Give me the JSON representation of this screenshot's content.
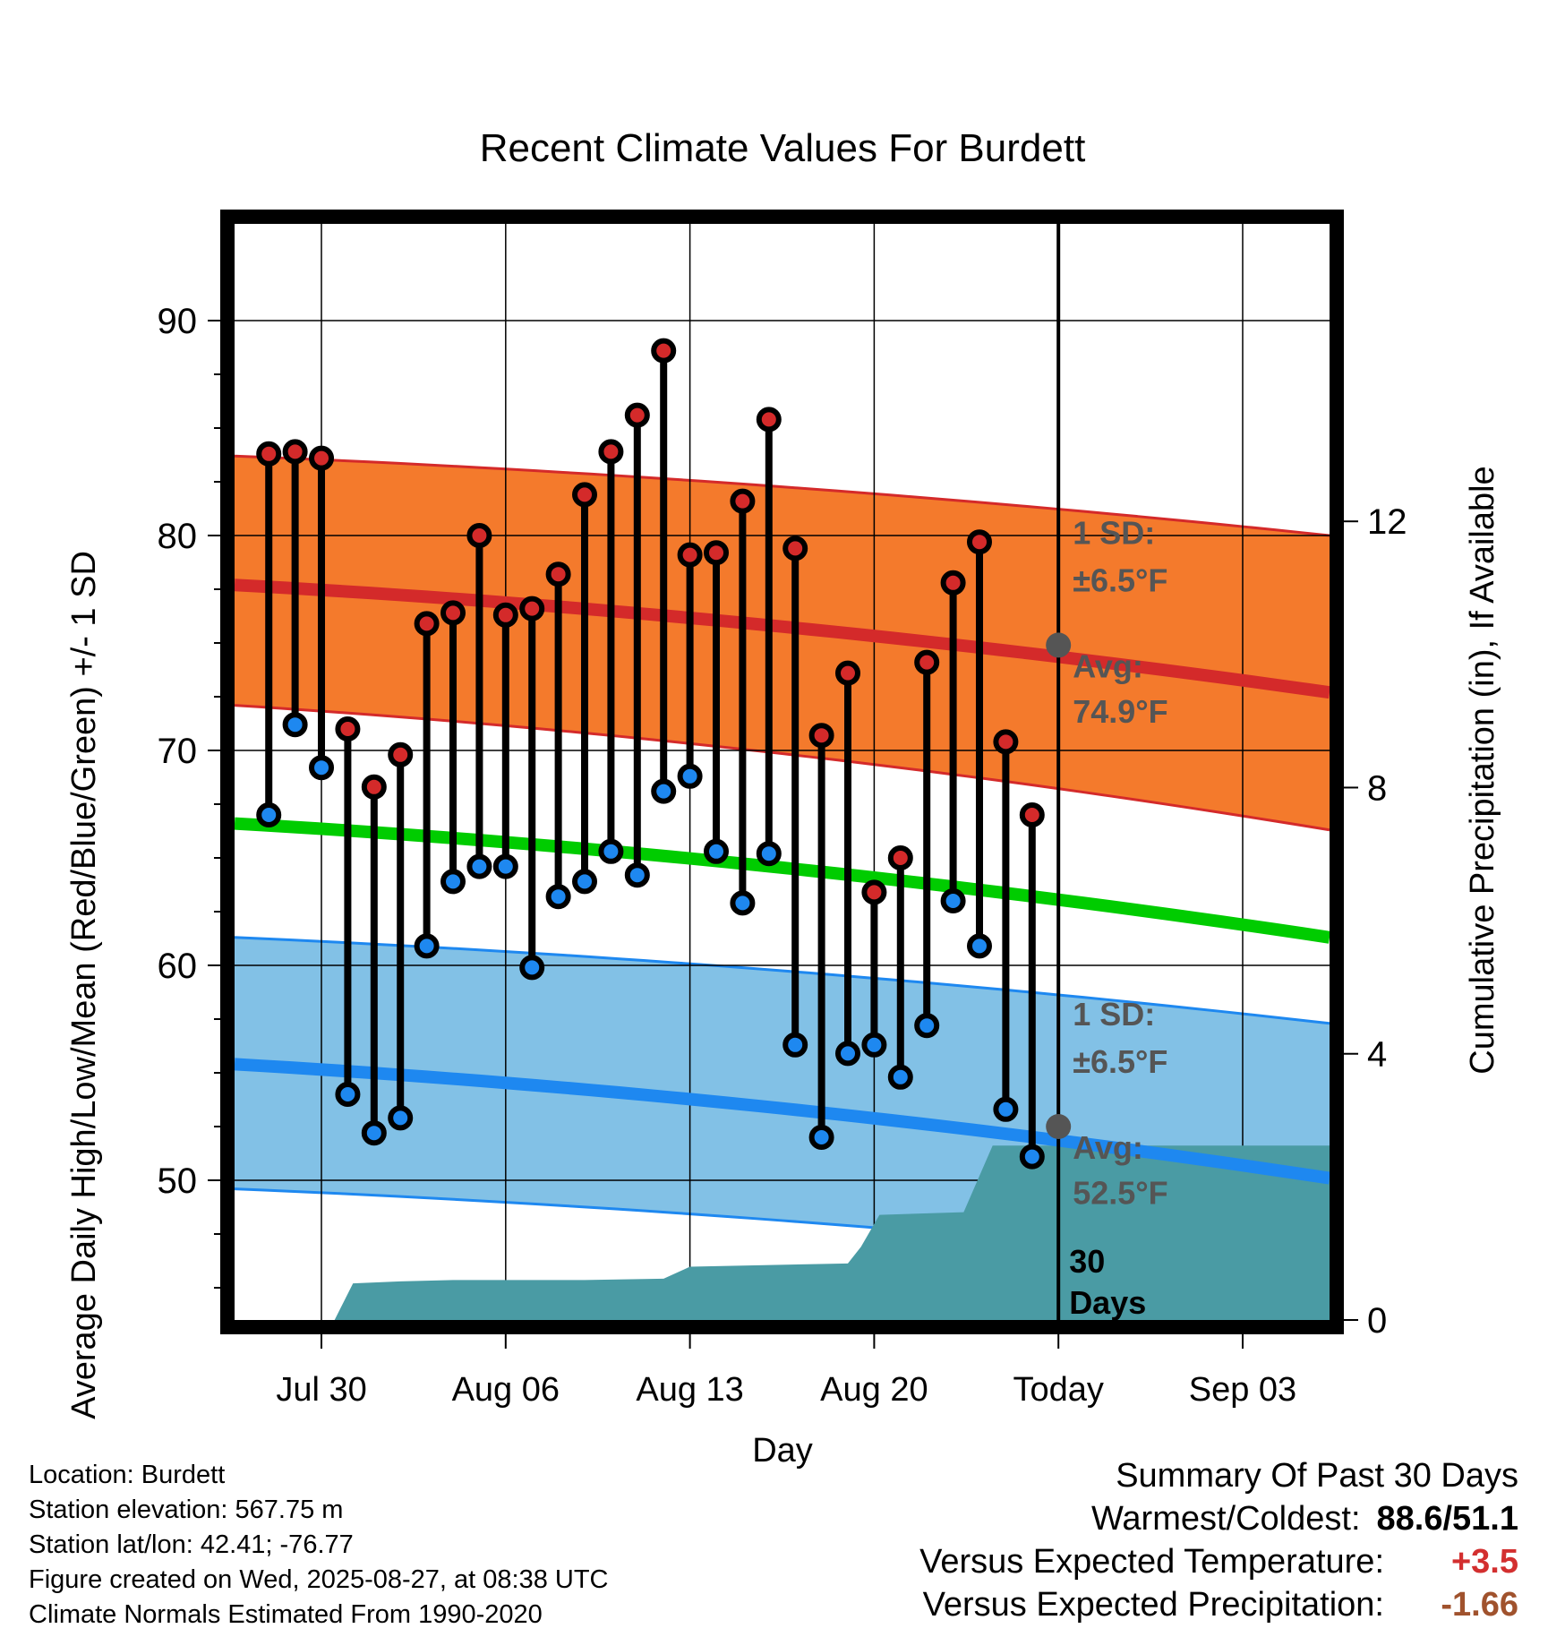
{
  "chart_data": {
    "type": "line",
    "title": "Recent Climate Values For Burdett",
    "xlabel": "Day",
    "ylabel": "Average Daily High/Low/Mean (Red/Blue/Green) +/- 1 SD",
    "y2label": "Cumulative Precipitation (in), If Available",
    "ylim": [
      43.5,
      94.5
    ],
    "y2lim": [
      0,
      16.47
    ],
    "xlim": [
      -3.3,
      38.3
    ],
    "yticks": [
      "50",
      "60",
      "70",
      "80",
      "90"
    ],
    "y2ticks": [
      "0",
      "4",
      "8",
      "12"
    ],
    "x_tick_labels": [
      {
        "day": 0,
        "label": "Jul 30"
      },
      {
        "day": 7,
        "label": "Aug 06"
      },
      {
        "day": 14,
        "label": "Aug 13"
      },
      {
        "day": 21,
        "label": "Aug 20"
      },
      {
        "day": 28,
        "label": "Today"
      },
      {
        "day": 35,
        "label": "Sep 03"
      }
    ],
    "grid": true,
    "today_day": 28,
    "daily": {
      "days": [
        -2,
        -1,
        0,
        1,
        2,
        3,
        4,
        5,
        6,
        7,
        8,
        9,
        10,
        11,
        12,
        13,
        14,
        15,
        16,
        17,
        18,
        19,
        20,
        21,
        22,
        23,
        24,
        25,
        26,
        27
      ],
      "high": [
        83.8,
        83.9,
        83.6,
        71.0,
        68.3,
        69.8,
        75.9,
        76.4,
        80.0,
        76.3,
        76.6,
        78.2,
        81.9,
        83.9,
        85.6,
        88.6,
        79.1,
        79.2,
        81.6,
        85.4,
        79.4,
        70.7,
        73.6,
        63.4,
        65.0,
        74.1,
        77.8,
        79.7,
        70.4,
        67.0
      ],
      "low": [
        67.0,
        71.2,
        69.2,
        54.0,
        52.2,
        52.9,
        60.9,
        63.9,
        64.6,
        64.6,
        59.9,
        63.2,
        63.9,
        65.3,
        64.2,
        68.1,
        68.8,
        65.3,
        62.9,
        65.2,
        56.3,
        52.0,
        55.9,
        56.3,
        54.8,
        57.2,
        63.0,
        60.9,
        53.3,
        51.1
      ]
    },
    "series": [
      {
        "name": "High",
        "color": "#d42a2a",
        "x": [
          -3.3,
          38.3
        ],
        "y": [
          77.7,
          72.7
        ]
      },
      {
        "name": "Mean",
        "color": "#00cc00",
        "x": [
          -3.3,
          38.3
        ],
        "y": [
          66.6,
          61.3
        ]
      },
      {
        "name": "Low",
        "color": "#1e88f0",
        "x": [
          -3.3,
          38.3
        ],
        "y": [
          55.4,
          50.1
        ]
      }
    ],
    "bands": [
      {
        "name": "High 1 SD",
        "color": "#f47a2c",
        "x": [
          -3.3,
          38.3
        ],
        "upper": [
          83.7,
          80.0
        ],
        "lower": [
          72.1,
          66.3
        ]
      },
      {
        "name": "Low 1 SD",
        "color": "#82c1e6",
        "x": [
          -3.3,
          38.3
        ],
        "upper": [
          61.3,
          57.3
        ],
        "lower": [
          49.6,
          45.8
        ]
      }
    ],
    "precipitation": {
      "color": "#4a9ba4",
      "x": [
        -3.3,
        0.5,
        1.2,
        3,
        5,
        10,
        13,
        14,
        20,
        20.5,
        21.2,
        24.4,
        25.5,
        38.3
      ],
      "y": [
        0,
        0,
        0.55,
        0.58,
        0.6,
        0.6,
        0.62,
        0.8,
        0.85,
        1.1,
        1.58,
        1.62,
        2.62,
        2.62
      ]
    },
    "annotations": {
      "high_sd_line1": "1 SD:",
      "high_sd_line2": "±6.5°F",
      "high_avg_line1": "Avg:",
      "high_avg_line2": "74.9°F",
      "low_sd_line1": "1 SD:",
      "low_sd_line2": "±6.5°F",
      "low_avg_line1": "Avg:",
      "low_avg_line2": "52.5°F",
      "period_line1": "30",
      "period_line2": "Days",
      "high_today_value": 74.9,
      "low_today_value": 52.5
    }
  },
  "info": {
    "location": "Location: Burdett",
    "elevation": "Station elevation: 567.75 m",
    "latlon": "Station lat/lon: 42.41; -76.77",
    "created": "Figure created on Wed, 2025-08-27, at 08:38 UTC",
    "normals": "Climate Normals Estimated From 1990-2020"
  },
  "summary": {
    "title": "Summary Of Past 30 Days",
    "warm_cold_label": "Warmest/Coldest:",
    "warm_cold_value": "88.6/51.1",
    "temp_label": "Versus Expected Temperature:",
    "temp_value": "+3.5",
    "precip_label": "Versus Expected Precipitation:",
    "precip_value": "-1.66"
  }
}
